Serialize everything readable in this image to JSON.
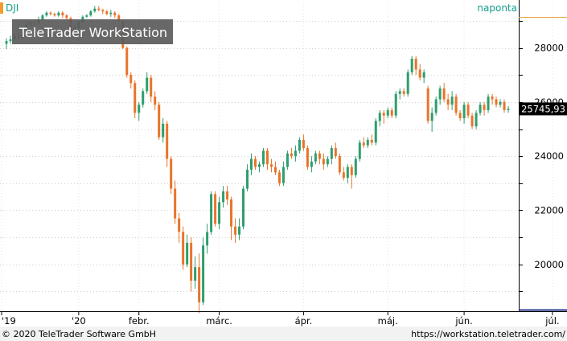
{
  "symbol": "DJI",
  "period": "naponta",
  "watermark": "TeleTrader WorkStation",
  "last_price_label": "25745,93",
  "footer": {
    "copyright": "© 2020 TeleTrader Software GmbH",
    "url": "https://workstation.teletrader.com/"
  },
  "colors": {
    "up": "#2e9e6e",
    "down": "#e8742a",
    "accent_teal": "#139f8a",
    "accent_orange": "#f39c2b",
    "axis_blue": "#26358a"
  },
  "chart_data": {
    "type": "candlestick",
    "x_tick_labels": [
      "'19",
      "'20",
      "febr.",
      "márc.",
      "ápr.",
      "máj.",
      "jún.",
      "júl."
    ],
    "y_tick_labels": [
      "20000",
      "22000",
      "24000",
      "26000",
      "28000"
    ],
    "ylim": [
      18300,
      29650
    ],
    "grid": true,
    "last_value": 25745.93,
    "candles": [
      {
        "o": 28150,
        "c": 28250,
        "h": 28350,
        "l": 27950
      },
      {
        "o": 28250,
        "c": 28320,
        "h": 28450,
        "l": 28150
      },
      {
        "o": 28320,
        "c": 28450,
        "h": 28550,
        "l": 28250
      },
      {
        "o": 28450,
        "c": 28380,
        "h": 28550,
        "l": 28300
      },
      {
        "o": 28380,
        "c": 28600,
        "h": 28700,
        "l": 28300
      },
      {
        "o": 28600,
        "c": 28850,
        "h": 28950,
        "l": 28500
      },
      {
        "o": 28850,
        "c": 28950,
        "h": 29000,
        "l": 28800
      },
      {
        "o": 28950,
        "c": 28900,
        "h": 29050,
        "l": 28800
      },
      {
        "o": 28900,
        "c": 29050,
        "h": 29150,
        "l": 28850
      },
      {
        "o": 29050,
        "c": 29200,
        "h": 29250,
        "l": 29000
      },
      {
        "o": 29200,
        "c": 29300,
        "h": 29350,
        "l": 29150
      },
      {
        "o": 29300,
        "c": 29250,
        "h": 29350,
        "l": 29200
      },
      {
        "o": 29250,
        "c": 29200,
        "h": 29300,
        "l": 29150
      },
      {
        "o": 29200,
        "c": 29300,
        "h": 29350,
        "l": 29150
      },
      {
        "o": 29300,
        "c": 29200,
        "h": 29350,
        "l": 29100
      },
      {
        "o": 29200,
        "c": 29100,
        "h": 29250,
        "l": 29050
      },
      {
        "o": 29100,
        "c": 28600,
        "h": 29150,
        "l": 28550
      },
      {
        "o": 28600,
        "c": 28750,
        "h": 28850,
        "l": 28400
      },
      {
        "o": 28750,
        "c": 28950,
        "h": 29000,
        "l": 28700
      },
      {
        "o": 28950,
        "c": 29150,
        "h": 29200,
        "l": 28900
      },
      {
        "o": 29150,
        "c": 29200,
        "h": 29250,
        "l": 29100
      },
      {
        "o": 29200,
        "c": 29350,
        "h": 29400,
        "l": 29150
      },
      {
        "o": 29350,
        "c": 29450,
        "h": 29550,
        "l": 29300
      },
      {
        "o": 29450,
        "c": 29400,
        "h": 29550,
        "l": 29350
      },
      {
        "o": 29400,
        "c": 29350,
        "h": 29450,
        "l": 29250
      },
      {
        "o": 29350,
        "c": 29250,
        "h": 29400,
        "l": 29200
      },
      {
        "o": 29250,
        "c": 29300,
        "h": 29400,
        "l": 29150
      },
      {
        "o": 29300,
        "c": 29200,
        "h": 29350,
        "l": 29100
      },
      {
        "o": 29200,
        "c": 29000,
        "h": 29250,
        "l": 28950
      },
      {
        "o": 29000,
        "c": 28000,
        "h": 29050,
        "l": 27950
      },
      {
        "o": 28000,
        "c": 27000,
        "h": 28050,
        "l": 26900
      },
      {
        "o": 27000,
        "c": 26700,
        "h": 27100,
        "l": 26500
      },
      {
        "o": 26700,
        "c": 25600,
        "h": 26800,
        "l": 25400
      },
      {
        "o": 25600,
        "c": 25900,
        "h": 26000,
        "l": 25300
      },
      {
        "o": 25900,
        "c": 26400,
        "h": 26500,
        "l": 25800
      },
      {
        "o": 26400,
        "c": 26900,
        "h": 27100,
        "l": 26300
      },
      {
        "o": 26900,
        "c": 26200,
        "h": 27000,
        "l": 26000
      },
      {
        "o": 26200,
        "c": 25900,
        "h": 26400,
        "l": 25700
      },
      {
        "o": 25900,
        "c": 24700,
        "h": 26000,
        "l": 24600
      },
      {
        "o": 24700,
        "c": 25200,
        "h": 25400,
        "l": 24500
      },
      {
        "o": 25200,
        "c": 23900,
        "h": 25300,
        "l": 23600
      },
      {
        "o": 23900,
        "c": 22800,
        "h": 24000,
        "l": 22600
      },
      {
        "o": 22800,
        "c": 21700,
        "h": 23100,
        "l": 21500
      },
      {
        "o": 21700,
        "c": 21200,
        "h": 21900,
        "l": 20800
      },
      {
        "o": 21200,
        "c": 20000,
        "h": 21400,
        "l": 19800
      },
      {
        "o": 20000,
        "c": 20800,
        "h": 21100,
        "l": 19900
      },
      {
        "o": 20800,
        "c": 19400,
        "h": 21000,
        "l": 19000
      },
      {
        "o": 19400,
        "c": 19900,
        "h": 20300,
        "l": 19100
      },
      {
        "o": 19900,
        "c": 18600,
        "h": 20400,
        "l": 18200
      },
      {
        "o": 18600,
        "c": 20700,
        "h": 21000,
        "l": 18500
      },
      {
        "o": 20700,
        "c": 21200,
        "h": 21500,
        "l": 20400
      },
      {
        "o": 21200,
        "c": 22600,
        "h": 22700,
        "l": 21100
      },
      {
        "o": 22600,
        "c": 21500,
        "h": 22700,
        "l": 21400
      },
      {
        "o": 21500,
        "c": 22300,
        "h": 22500,
        "l": 21300
      },
      {
        "o": 22300,
        "c": 22700,
        "h": 22900,
        "l": 22100
      },
      {
        "o": 22700,
        "c": 22400,
        "h": 22900,
        "l": 22200
      },
      {
        "o": 22400,
        "c": 21400,
        "h": 22500,
        "l": 20900
      },
      {
        "o": 21400,
        "c": 21100,
        "h": 21700,
        "l": 20800
      },
      {
        "o": 21100,
        "c": 21400,
        "h": 21700,
        "l": 20900
      },
      {
        "o": 21400,
        "c": 22800,
        "h": 22900,
        "l": 21300
      },
      {
        "o": 22800,
        "c": 23500,
        "h": 23700,
        "l": 22700
      },
      {
        "o": 23500,
        "c": 23900,
        "h": 24100,
        "l": 23300
      },
      {
        "o": 23900,
        "c": 23600,
        "h": 24000,
        "l": 23500
      },
      {
        "o": 23600,
        "c": 23700,
        "h": 23800,
        "l": 23400
      },
      {
        "o": 23700,
        "c": 24200,
        "h": 24300,
        "l": 23600
      },
      {
        "o": 24200,
        "c": 23700,
        "h": 24300,
        "l": 23500
      },
      {
        "o": 23700,
        "c": 23600,
        "h": 23900,
        "l": 23400
      },
      {
        "o": 23600,
        "c": 23400,
        "h": 23800,
        "l": 23300
      },
      {
        "o": 23400,
        "c": 23000,
        "h": 23500,
        "l": 22900
      },
      {
        "o": 23000,
        "c": 23600,
        "h": 23800,
        "l": 22900
      },
      {
        "o": 23600,
        "c": 24100,
        "h": 24200,
        "l": 23500
      },
      {
        "o": 24100,
        "c": 24000,
        "h": 24300,
        "l": 23900
      },
      {
        "o": 24000,
        "c": 24200,
        "h": 24400,
        "l": 23800
      },
      {
        "o": 24200,
        "c": 24600,
        "h": 24700,
        "l": 24100
      },
      {
        "o": 24600,
        "c": 24300,
        "h": 24800,
        "l": 24200
      },
      {
        "o": 24300,
        "c": 23600,
        "h": 24400,
        "l": 23500
      },
      {
        "o": 23600,
        "c": 23800,
        "h": 24000,
        "l": 23400
      },
      {
        "o": 23800,
        "c": 24100,
        "h": 24200,
        "l": 23700
      },
      {
        "o": 24100,
        "c": 23900,
        "h": 24200,
        "l": 23700
      },
      {
        "o": 23900,
        "c": 23700,
        "h": 24100,
        "l": 23500
      },
      {
        "o": 23700,
        "c": 23900,
        "h": 24000,
        "l": 23600
      },
      {
        "o": 23900,
        "c": 24300,
        "h": 24400,
        "l": 23700
      },
      {
        "o": 24300,
        "c": 24000,
        "h": 24500,
        "l": 23900
      },
      {
        "o": 24000,
        "c": 23400,
        "h": 24100,
        "l": 23300
      },
      {
        "o": 23400,
        "c": 23200,
        "h": 23600,
        "l": 23100
      },
      {
        "o": 23200,
        "c": 23600,
        "h": 23700,
        "l": 23000
      },
      {
        "o": 23600,
        "c": 23300,
        "h": 23700,
        "l": 22800
      },
      {
        "o": 23300,
        "c": 23900,
        "h": 24000,
        "l": 23200
      },
      {
        "o": 23900,
        "c": 24500,
        "h": 24600,
        "l": 23800
      },
      {
        "o": 24500,
        "c": 24400,
        "h": 24700,
        "l": 24300
      },
      {
        "o": 24400,
        "c": 24600,
        "h": 24700,
        "l": 24300
      },
      {
        "o": 24600,
        "c": 24500,
        "h": 24800,
        "l": 24400
      },
      {
        "o": 24500,
        "c": 25300,
        "h": 25400,
        "l": 24400
      },
      {
        "o": 25300,
        "c": 25600,
        "h": 25700,
        "l": 25100
      },
      {
        "o": 25600,
        "c": 25500,
        "h": 25700,
        "l": 25200
      },
      {
        "o": 25500,
        "c": 25700,
        "h": 25800,
        "l": 25400
      },
      {
        "o": 25700,
        "c": 25500,
        "h": 25800,
        "l": 25400
      },
      {
        "o": 25500,
        "c": 26300,
        "h": 26400,
        "l": 25400
      },
      {
        "o": 26300,
        "c": 26400,
        "h": 26500,
        "l": 26100
      },
      {
        "o": 26400,
        "c": 26300,
        "h": 26500,
        "l": 26200
      },
      {
        "o": 26300,
        "c": 27100,
        "h": 27200,
        "l": 26200
      },
      {
        "o": 27100,
        "c": 27600,
        "h": 27700,
        "l": 27000
      },
      {
        "o": 27600,
        "c": 27200,
        "h": 27700,
        "l": 27000
      },
      {
        "o": 27200,
        "c": 26900,
        "h": 27400,
        "l": 26800
      },
      {
        "o": 26900,
        "c": 27100,
        "h": 27200,
        "l": 26700
      },
      {
        "o": 26500,
        "c": 25300,
        "h": 26600,
        "l": 25200
      },
      {
        "o": 25300,
        "c": 25600,
        "h": 25800,
        "l": 24900
      },
      {
        "o": 25600,
        "c": 26100,
        "h": 26200,
        "l": 25500
      },
      {
        "o": 26100,
        "c": 26500,
        "h": 26600,
        "l": 25900
      },
      {
        "o": 26500,
        "c": 26100,
        "h": 26700,
        "l": 26000
      },
      {
        "o": 26100,
        "c": 25900,
        "h": 26300,
        "l": 25700
      },
      {
        "o": 25900,
        "c": 26200,
        "h": 26400,
        "l": 25700
      },
      {
        "o": 26200,
        "c": 25600,
        "h": 26300,
        "l": 25500
      },
      {
        "o": 25600,
        "c": 25400,
        "h": 25700,
        "l": 25300
      },
      {
        "o": 25400,
        "c": 25900,
        "h": 26000,
        "l": 25200
      },
      {
        "o": 25900,
        "c": 25500,
        "h": 26000,
        "l": 25400
      },
      {
        "o": 25500,
        "c": 25100,
        "h": 25600,
        "l": 25000
      },
      {
        "o": 25100,
        "c": 25600,
        "h": 25700,
        "l": 25000
      },
      {
        "o": 25600,
        "c": 25900,
        "h": 26000,
        "l": 25500
      },
      {
        "o": 25900,
        "c": 25700,
        "h": 26000,
        "l": 25500
      },
      {
        "o": 25700,
        "c": 26200,
        "h": 26300,
        "l": 25600
      },
      {
        "o": 26200,
        "c": 26100,
        "h": 26300,
        "l": 25900
      },
      {
        "o": 26100,
        "c": 25900,
        "h": 26200,
        "l": 25800
      },
      {
        "o": 25900,
        "c": 26000,
        "h": 26100,
        "l": 25800
      },
      {
        "o": 26000,
        "c": 25700,
        "h": 26100,
        "l": 25600
      },
      {
        "o": 25700,
        "c": 25745.93,
        "h": 25850,
        "l": 25600
      }
    ]
  }
}
